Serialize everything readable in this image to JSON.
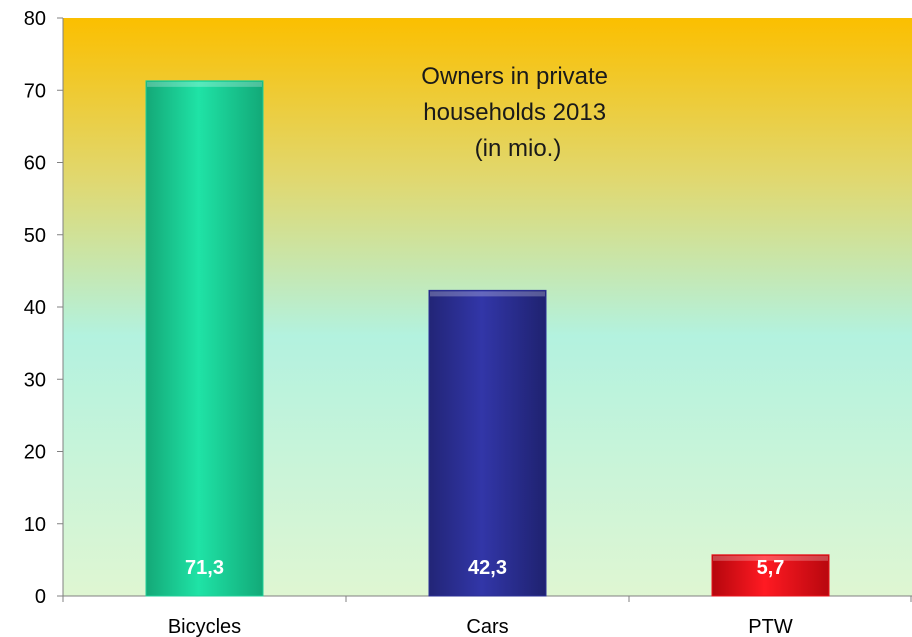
{
  "chart_data": {
    "type": "bar",
    "title_lines": [
      "Owners in private",
      "households 2013",
      "(in mio.)"
    ],
    "categories": [
      "Bicycles",
      "Cars",
      "PTW"
    ],
    "values": [
      71.3,
      42.3,
      5.7
    ],
    "value_labels": [
      "71,3",
      "42,3",
      "5,7"
    ],
    "bar_colors": [
      "#1fcf98",
      "#2b2f96",
      "#e8121b"
    ],
    "ylim": [
      0,
      80
    ],
    "yticks": [
      0,
      10,
      20,
      30,
      40,
      50,
      60,
      70,
      80
    ],
    "grid": false,
    "legend": "none",
    "background_gradient": [
      "#fbbf00",
      "#b3f2df",
      "#dff6d2"
    ]
  }
}
